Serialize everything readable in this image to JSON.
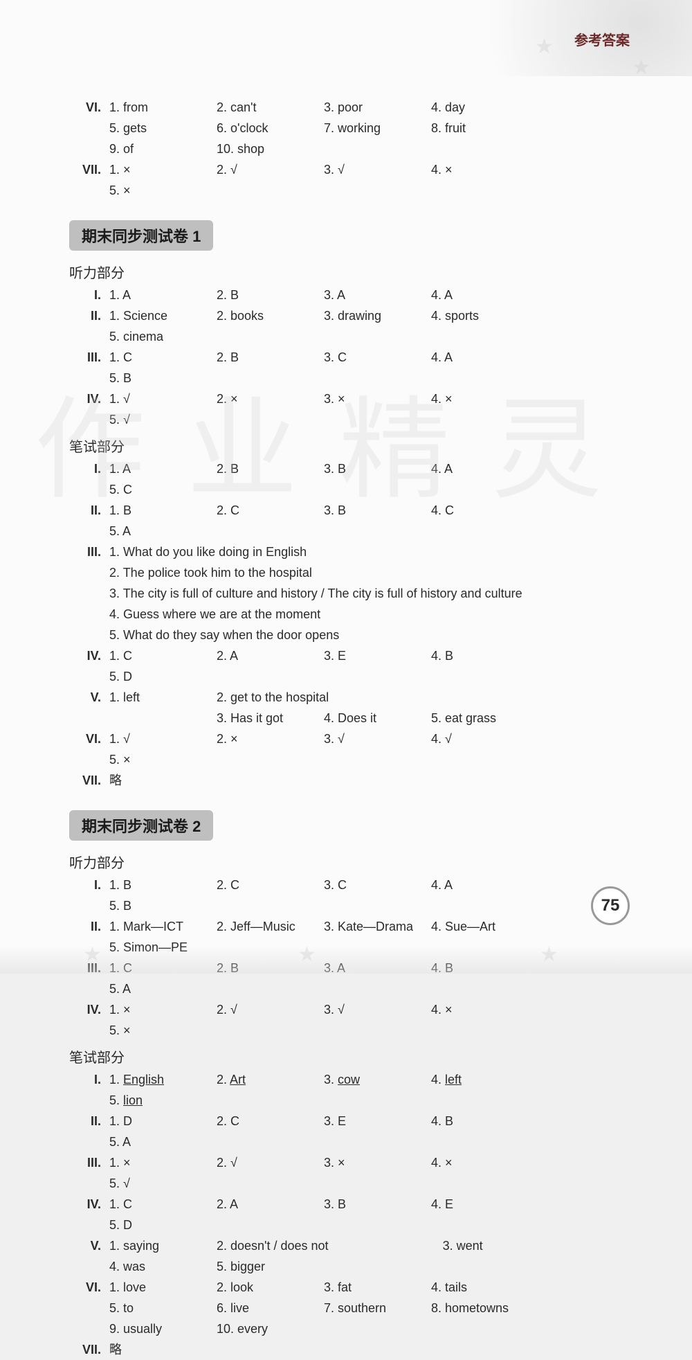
{
  "header_label": "参考答案",
  "page_number": "75",
  "top_block": {
    "rows": [
      {
        "roman": "VI.",
        "items": [
          "1. from",
          "2. can't",
          "3. poor",
          "4. day",
          "5. gets",
          "6. o'clock",
          "7. working",
          "8. fruit",
          "9. of",
          "10. shop"
        ]
      },
      {
        "roman": "VII.",
        "items": [
          "1. ×",
          "2. √",
          "3. √",
          "4. ×",
          "5. ×"
        ]
      }
    ]
  },
  "test1": {
    "title": "期末同步测试卷 1",
    "listening_label": "听力部分",
    "listening_rows": [
      {
        "roman": "I.",
        "items": [
          "1. A",
          "2. B",
          "3. A",
          "4. A"
        ]
      },
      {
        "roman": "II.",
        "items": [
          "1. Science",
          "2. books",
          "3. drawing",
          "4. sports",
          "5. cinema"
        ]
      },
      {
        "roman": "III.",
        "items": [
          "1. C",
          "2. B",
          "3. C",
          "4. A",
          "5. B"
        ]
      },
      {
        "roman": "IV.",
        "items": [
          "1. √",
          "2. ×",
          "3. ×",
          "4. ×",
          "5. √"
        ]
      }
    ],
    "written_label": "笔试部分",
    "written_rows": [
      {
        "roman": "I.",
        "items": [
          "1. A",
          "2. B",
          "3. B",
          "4. A",
          "5. C"
        ]
      },
      {
        "roman": "II.",
        "items": [
          "1. B",
          "2. C",
          "3. B",
          "4. C",
          "5. A"
        ]
      }
    ],
    "section_iii": {
      "roman": "III.",
      "lines": [
        "1. What do you like doing in English",
        "2. The police took him to the hospital",
        "3. The city is full of culture and history / The city is full of history and culture",
        "4. Guess where we are at the moment",
        "5. What do they say when the door opens"
      ]
    },
    "written_rows2": [
      {
        "roman": "IV.",
        "items": [
          "1. C",
          "2. A",
          "3. E",
          "4. B",
          "5. D"
        ]
      },
      {
        "roman": "V.",
        "items": [
          "1. left",
          "2. get to the hospital",
          "",
          "",
          "",
          "3. Has it got",
          "4. Does it",
          "5. eat grass"
        ]
      },
      {
        "roman": "VI.",
        "items": [
          "1. √",
          "2. ×",
          "3. √",
          "4. √",
          "5. ×"
        ]
      },
      {
        "roman": "VII.",
        "items": [
          "略"
        ]
      }
    ]
  },
  "test2": {
    "title": "期末同步测试卷 2",
    "listening_label": "听力部分",
    "listening_rows": [
      {
        "roman": "I.",
        "items": [
          "1. B",
          "2. C",
          "3. C",
          "4. A",
          "5. B"
        ]
      },
      {
        "roman": "II.",
        "items": [
          "1. Mark—ICT",
          "2. Jeff—Music",
          "3. Kate—Drama",
          "4. Sue—Art",
          "5. Simon—PE"
        ]
      },
      {
        "roman": "III.",
        "items": [
          "1. C",
          "2. B",
          "3. A",
          "4. B",
          "5. A"
        ]
      },
      {
        "roman": "IV.",
        "items": [
          "1. ×",
          "2. √",
          "3. √",
          "4. ×",
          "5. ×"
        ]
      }
    ],
    "written_label": "笔试部分",
    "written_rows": [
      {
        "roman": "I.",
        "items_u": [
          "1. English",
          "2. Art",
          "3. cow",
          "4. left",
          "5. lion"
        ],
        "underline": [
          [
            3,
            9
          ],
          [
            3,
            5
          ],
          [
            3,
            5
          ],
          [
            3,
            6
          ],
          [
            3,
            6
          ]
        ]
      },
      {
        "roman": "II.",
        "items": [
          "1. D",
          "2. C",
          "3. E",
          "4. B",
          "5. A"
        ]
      },
      {
        "roman": "III.",
        "items": [
          "1. ×",
          "2. √",
          "3. ×",
          "4. ×",
          "5. √"
        ]
      },
      {
        "roman": "IV.",
        "items": [
          "1. C",
          "2. A",
          "3. B",
          "4. E",
          "5. D"
        ]
      },
      {
        "roman": "V.",
        "items": [
          "1. saying",
          "2. doesn't / does not",
          "",
          "3. went",
          "4. was",
          "5. bigger"
        ]
      },
      {
        "roman": "VI.",
        "items": [
          "1. love",
          "2. look",
          "3. fat",
          "4. tails",
          "5. to",
          "6. live",
          "7. southern",
          "8. hometowns",
          "9. usually",
          "10. every"
        ]
      },
      {
        "roman": "VII.",
        "items": [
          "略"
        ]
      }
    ]
  }
}
